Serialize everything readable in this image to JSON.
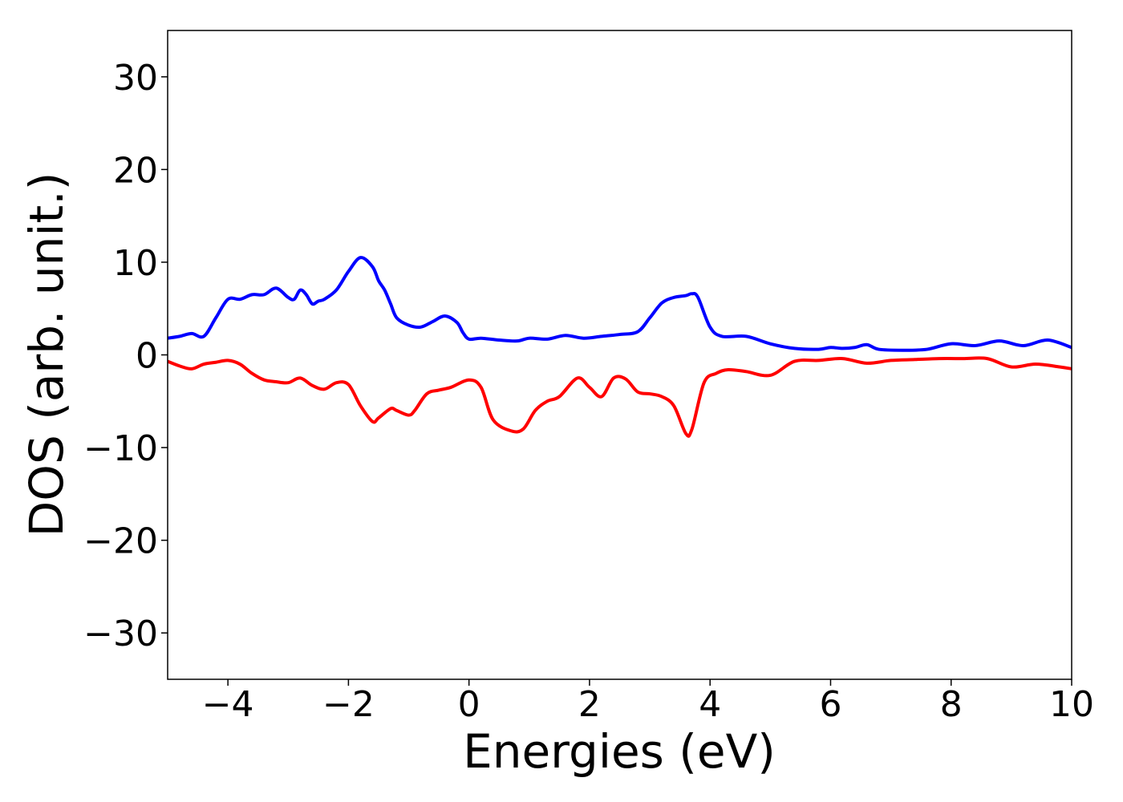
{
  "chart_data": {
    "type": "line",
    "xlabel": "Energies (eV)",
    "ylabel": "DOS (arb. unit.)",
    "xlim": [
      -5,
      10
    ],
    "ylim": [
      -35,
      35
    ],
    "grid": false,
    "x_ticks": [
      {
        "value": -4,
        "label": "−4"
      },
      {
        "value": -2,
        "label": "−2"
      },
      {
        "value": 0,
        "label": "0"
      },
      {
        "value": 2,
        "label": "2"
      },
      {
        "value": 4,
        "label": "4"
      },
      {
        "value": 6,
        "label": "6"
      },
      {
        "value": 8,
        "label": "8"
      },
      {
        "value": 10,
        "label": "10"
      }
    ],
    "y_ticks": [
      {
        "value": 30,
        "label": "30"
      },
      {
        "value": 20,
        "label": "20"
      },
      {
        "value": 10,
        "label": "10"
      },
      {
        "value": 0,
        "label": "0"
      },
      {
        "value": -10,
        "label": "−10"
      },
      {
        "value": -20,
        "label": "−20"
      },
      {
        "value": -30,
        "label": "−30"
      }
    ],
    "series": [
      {
        "color": "#0000ff",
        "x": [
          -5.0,
          -4.8,
          -4.6,
          -4.4,
          -4.2,
          -4.0,
          -3.8,
          -3.6,
          -3.4,
          -3.2,
          -3.0,
          -2.9,
          -2.8,
          -2.7,
          -2.6,
          -2.5,
          -2.4,
          -2.2,
          -2.0,
          -1.8,
          -1.6,
          -1.5,
          -1.4,
          -1.3,
          -1.2,
          -1.0,
          -0.8,
          -0.6,
          -0.4,
          -0.2,
          -0.1,
          0.0,
          0.2,
          0.5,
          0.8,
          1.0,
          1.3,
          1.6,
          1.9,
          2.2,
          2.5,
          2.8,
          3.0,
          3.2,
          3.4,
          3.6,
          3.7,
          3.8,
          4.0,
          4.2,
          4.6,
          5.0,
          5.4,
          5.8,
          6.0,
          6.2,
          6.4,
          6.6,
          6.8,
          7.2,
          7.6,
          8.0,
          8.4,
          8.8,
          9.2,
          9.6,
          10.0
        ],
        "y": [
          1.8,
          2.0,
          2.3,
          2.0,
          4.0,
          6.0,
          6.0,
          6.5,
          6.5,
          7.2,
          6.2,
          6.0,
          7.0,
          6.5,
          5.5,
          5.8,
          6.0,
          7.0,
          9.0,
          10.5,
          9.5,
          8.0,
          7.0,
          5.5,
          4.0,
          3.2,
          3.0,
          3.6,
          4.2,
          3.5,
          2.4,
          1.7,
          1.8,
          1.6,
          1.5,
          1.8,
          1.7,
          2.1,
          1.8,
          2.0,
          2.2,
          2.5,
          4.0,
          5.6,
          6.2,
          6.4,
          6.6,
          6.2,
          3.0,
          2.0,
          2.0,
          1.2,
          0.7,
          0.6,
          0.8,
          0.7,
          0.8,
          1.1,
          0.6,
          0.5,
          0.6,
          1.2,
          1.0,
          1.5,
          1.0,
          1.6,
          0.8
        ]
      },
      {
        "color": "#ff0000",
        "x": [
          -5.0,
          -4.8,
          -4.6,
          -4.4,
          -4.2,
          -4.0,
          -3.8,
          -3.6,
          -3.4,
          -3.2,
          -3.0,
          -2.8,
          -2.6,
          -2.4,
          -2.2,
          -2.0,
          -1.8,
          -1.6,
          -1.5,
          -1.3,
          -1.2,
          -1.0,
          -0.9,
          -0.7,
          -0.5,
          -0.3,
          0.0,
          0.2,
          0.4,
          0.7,
          0.9,
          1.1,
          1.3,
          1.5,
          1.8,
          2.0,
          2.2,
          2.4,
          2.6,
          2.8,
          3.0,
          3.2,
          3.4,
          3.6,
          3.7,
          3.9,
          4.1,
          4.3,
          4.6,
          5.0,
          5.4,
          5.8,
          6.2,
          6.6,
          7.0,
          7.4,
          7.8,
          8.2,
          8.6,
          9.0,
          9.4,
          9.8,
          10.0
        ],
        "y": [
          -0.7,
          -1.2,
          -1.5,
          -1.0,
          -0.8,
          -0.6,
          -1.0,
          -2.0,
          -2.7,
          -2.9,
          -3.0,
          -2.5,
          -3.3,
          -3.7,
          -3.0,
          -3.2,
          -5.5,
          -7.2,
          -6.8,
          -5.8,
          -6.0,
          -6.5,
          -6.0,
          -4.2,
          -3.8,
          -3.5,
          -2.7,
          -3.5,
          -7.0,
          -8.2,
          -8.0,
          -6.0,
          -5.0,
          -4.5,
          -2.5,
          -3.5,
          -4.5,
          -2.5,
          -2.6,
          -4.0,
          -4.2,
          -4.5,
          -5.5,
          -8.5,
          -8.0,
          -3.0,
          -2.0,
          -1.6,
          -1.8,
          -2.2,
          -0.7,
          -0.6,
          -0.4,
          -0.9,
          -0.6,
          -0.5,
          -0.4,
          -0.4,
          -0.4,
          -1.3,
          -1.0,
          -1.3,
          -1.5
        ]
      }
    ]
  }
}
